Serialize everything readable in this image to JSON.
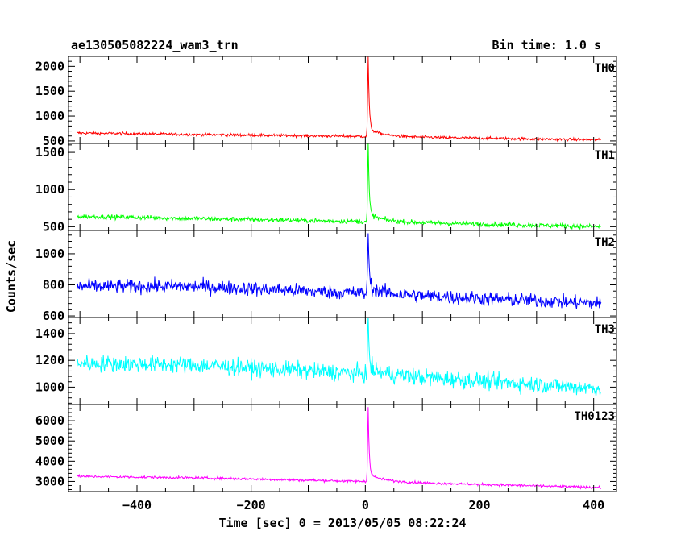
{
  "chart_data": {
    "type": "line",
    "title": "ae130505082224_wam3_trn",
    "bin_time_label": "Bin time: 1.0 s",
    "xlabel": "Time [sec] 0 = 2013/05/05 08:22:24",
    "ylabel": "Counts/sec",
    "xlim": [
      -520,
      440
    ],
    "x_ticks": [
      -400,
      -200,
      0,
      200,
      400
    ],
    "x_range_data": [
      -505,
      413
    ],
    "burst_time": 5,
    "panels": [
      {
        "name": "TH0",
        "color": "#ff0000",
        "ylim": [
          450,
          2200
        ],
        "y_ticks": [
          500,
          1000,
          1500,
          2000
        ],
        "baseline": [
          [
            -505,
            660
          ],
          [
            -300,
            630
          ],
          [
            0,
            590
          ],
          [
            413,
            520
          ]
        ],
        "noise": 20,
        "peak": 2200
      },
      {
        "name": "TH1",
        "color": "#00ff00",
        "ylim": [
          450,
          1620
        ],
        "y_ticks": [
          500,
          1000,
          1500
        ],
        "baseline": [
          [
            -505,
            640
          ],
          [
            -300,
            610
          ],
          [
            0,
            570
          ],
          [
            413,
            500
          ]
        ],
        "noise": 22,
        "peak": 1620
      },
      {
        "name": "TH2",
        "color": "#0000ff",
        "ylim": [
          590,
          1150
        ],
        "y_ticks": [
          600,
          800,
          1000
        ],
        "baseline": [
          [
            -505,
            790
          ],
          [
            -300,
            790
          ],
          [
            0,
            745
          ],
          [
            413,
            680
          ]
        ],
        "noise": 32,
        "peak": 1150
      },
      {
        "name": "TH3",
        "color": "#00ffff",
        "ylim": [
          870,
          1520
        ],
        "y_ticks": [
          1000,
          1200,
          1400
        ],
        "baseline": [
          [
            -505,
            1180
          ],
          [
            -300,
            1165
          ],
          [
            0,
            1100
          ],
          [
            413,
            990
          ]
        ],
        "noise": 45,
        "peak": 1520
      },
      {
        "name": "TH0123",
        "color": "#ff00ff",
        "ylim": [
          2500,
          6800
        ],
        "y_ticks": [
          3000,
          4000,
          5000,
          6000
        ],
        "baseline": [
          [
            -505,
            3250
          ],
          [
            -300,
            3180
          ],
          [
            0,
            3000
          ],
          [
            413,
            2700
          ]
        ],
        "noise": 45,
        "peak": 6700
      }
    ]
  }
}
